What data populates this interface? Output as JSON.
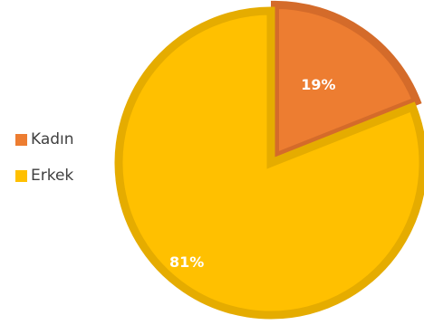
{
  "chart_data": {
    "type": "pie",
    "categories": [
      "Kadın",
      "Erkek"
    ],
    "values": [
      19,
      81
    ],
    "labels": [
      "19%",
      "81%"
    ],
    "colors": {
      "Kadın": "#ED7D31",
      "Erkek": "#FFC000"
    },
    "border_colors": {
      "Kadın": "#D46B2A",
      "Erkek": "#E5AC00"
    },
    "start_angle_deg": 0,
    "direction": "clockwise",
    "exploded_slice": "Kadın",
    "legend_position": "left"
  },
  "legend": {
    "items": [
      {
        "label": "Kadın",
        "color": "#ED7D31"
      },
      {
        "label": "Erkek",
        "color": "#FFC000"
      }
    ]
  }
}
